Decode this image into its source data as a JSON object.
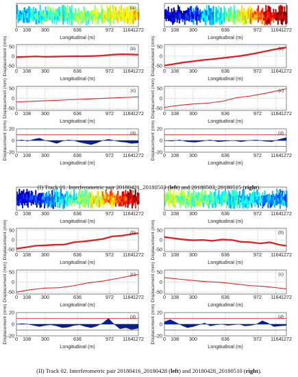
{
  "captions": {
    "track1": {
      "pre": "(I) Track 01. Interferometric pair 20180421_20180503 (",
      "b1": "left",
      "mid": ") and 20180503_20180515 (",
      "b2": "right",
      "post": ")."
    },
    "track2": {
      "pre": "(II) Track 02. Interferometric pair 20180416_20180428 (",
      "b1": "left",
      "mid": ") and 20180428_20180510 (",
      "b2": "right",
      "post": ")."
    }
  },
  "chart_data": [
    {
      "type": "heatmap",
      "block": "I",
      "side": "left",
      "panel": "(a)",
      "xlabel": "Longitudinal (m)",
      "xticks": [
        0,
        108,
        300,
        636,
        972,
        1164,
        1272
      ],
      "xlim": [
        0,
        1272
      ],
      "color_trend": [
        0.32,
        0.4,
        0.44,
        0.42,
        0.46,
        0.5,
        0.54,
        0.58,
        0.6,
        0.66
      ]
    },
    {
      "type": "line",
      "block": "I",
      "side": "left",
      "panel": "(b)",
      "xlabel": "Longitudinal (m)",
      "ylabel": "Displacement (mm)",
      "xticks": [
        0,
        108,
        300,
        636,
        972,
        1164,
        1272
      ],
      "yticks": [
        -50,
        0,
        50
      ],
      "ylim": [
        -60,
        60
      ],
      "x": [
        0,
        100,
        200,
        300,
        400,
        500,
        600,
        700,
        800,
        900,
        1000,
        1100,
        1200,
        1272
      ],
      "y": [
        -5,
        -3,
        -1,
        -3,
        -2,
        -1,
        0,
        0,
        1,
        3,
        8,
        10,
        9,
        8
      ]
    },
    {
      "type": "line",
      "block": "I",
      "side": "left",
      "panel": "(c)",
      "xlabel": "Longitudinal (m)",
      "ylabel": "Displacement (mm)",
      "xticks": [
        0,
        108,
        300,
        636,
        972,
        1164,
        1272
      ],
      "yticks": [
        -50,
        0,
        50
      ],
      "ylim": [
        -60,
        60
      ],
      "x": [
        0,
        200,
        400,
        600,
        800,
        1000,
        1200,
        1272
      ],
      "y": [
        -18,
        -14,
        -10,
        -6,
        -2,
        2,
        6,
        8
      ]
    },
    {
      "type": "area",
      "block": "I",
      "side": "left",
      "panel": "(d)",
      "xlabel": "Longitudinal (m)",
      "ylabel": "Displacement (mm)",
      "xticks": [
        0,
        108,
        300,
        636,
        972,
        1164,
        1272
      ],
      "yticks": [
        -20,
        0,
        20
      ],
      "ylim": [
        -20,
        20
      ],
      "thresholds": [
        -10,
        10
      ],
      "x": [
        0,
        60,
        120,
        180,
        240,
        300,
        360,
        420,
        480,
        540,
        600,
        660,
        720,
        780,
        840,
        900,
        960,
        1020,
        1080,
        1140,
        1200,
        1272
      ],
      "y": [
        0,
        1,
        -1,
        2,
        4,
        0,
        -2,
        -5,
        -1,
        1,
        0,
        -3,
        -5,
        -7,
        -4,
        0,
        2,
        0,
        -2,
        -3,
        -5,
        -4
      ]
    },
    {
      "type": "heatmap",
      "block": "I",
      "side": "right",
      "panel": "(a)",
      "xlabel": "Longitudinal (m)",
      "xticks": [
        0,
        108,
        300,
        636,
        972,
        1164,
        1272
      ],
      "xlim": [
        0,
        1272
      ],
      "color_trend": [
        0.08,
        0.12,
        0.2,
        0.3,
        0.4,
        0.5,
        0.62,
        0.76,
        0.88,
        0.95
      ]
    },
    {
      "type": "line",
      "block": "I",
      "side": "right",
      "panel": "(b)",
      "xlabel": "Longitudinal (m)",
      "ylabel": "Displacement (mm)",
      "xticks": [
        0,
        108,
        300,
        636,
        972,
        1164,
        1272
      ],
      "yticks": [
        -50,
        0,
        50
      ],
      "ylim": [
        -60,
        60
      ],
      "x": [
        0,
        100,
        200,
        300,
        400,
        500,
        600,
        700,
        800,
        900,
        1000,
        1100,
        1200,
        1272
      ],
      "y": [
        -48,
        -40,
        -32,
        -26,
        -20,
        -15,
        -10,
        -4,
        2,
        10,
        20,
        30,
        40,
        45
      ]
    },
    {
      "type": "line",
      "block": "I",
      "side": "right",
      "panel": "(c)",
      "xlabel": "Longitudinal (m)",
      "ylabel": "Displacement (mm)",
      "xticks": [
        0,
        108,
        300,
        636,
        972,
        1164,
        1272
      ],
      "yticks": [
        -50,
        0,
        50
      ],
      "ylim": [
        -60,
        60
      ],
      "x": [
        0,
        150,
        300,
        450,
        600,
        750,
        900,
        1050,
        1200,
        1272
      ],
      "y": [
        -45,
        -35,
        -28,
        -24,
        -15,
        3,
        12,
        25,
        40,
        48
      ]
    },
    {
      "type": "area",
      "block": "I",
      "side": "right",
      "panel": "(d)",
      "xlabel": "Longitudinal (m)",
      "ylabel": "Displacement (mm)",
      "xticks": [
        0,
        108,
        300,
        636,
        972,
        1164,
        1272
      ],
      "yticks": [
        -20,
        0,
        20
      ],
      "ylim": [
        -20,
        20
      ],
      "thresholds": [
        -10,
        10
      ],
      "x": [
        0,
        80,
        160,
        240,
        320,
        400,
        480,
        560,
        640,
        720,
        800,
        880,
        960,
        1040,
        1120,
        1200,
        1272
      ],
      "y": [
        0,
        -1,
        1,
        -2,
        -3,
        -1,
        1,
        -2,
        -1,
        0,
        -2,
        0,
        1,
        -1,
        -2,
        2,
        5
      ]
    },
    {
      "type": "heatmap",
      "block": "II",
      "side": "left",
      "panel": "(a)",
      "xlabel": "Longitudinal (m)",
      "xticks": [
        0,
        108,
        300,
        636,
        972,
        1164,
        1272
      ],
      "xlim": [
        0,
        1272
      ],
      "color_trend": [
        0.1,
        0.14,
        0.22,
        0.32,
        0.42,
        0.52,
        0.62,
        0.72,
        0.82,
        0.9
      ]
    },
    {
      "type": "line",
      "block": "II",
      "side": "left",
      "panel": "(b)",
      "xlabel": "Longitudinal (m)",
      "ylabel": "Displacement (mm)",
      "xticks": [
        0,
        108,
        300,
        636,
        972,
        1164,
        1272
      ],
      "yticks": [
        -50,
        0,
        50
      ],
      "ylim": [
        -60,
        60
      ],
      "x": [
        0,
        100,
        200,
        300,
        400,
        500,
        600,
        700,
        800,
        900,
        1000,
        1100,
        1200,
        1272
      ],
      "y": [
        -45,
        -38,
        -30,
        -28,
        -25,
        -24,
        -12,
        -8,
        -2,
        5,
        18,
        22,
        30,
        35
      ]
    },
    {
      "type": "line",
      "block": "II",
      "side": "left",
      "panel": "(c)",
      "xlabel": "Longitudinal (m)",
      "ylabel": "Displacement (mm)",
      "xticks": [
        0,
        108,
        300,
        636,
        972,
        1164,
        1272
      ],
      "yticks": [
        -50,
        0,
        50
      ],
      "ylim": [
        -60,
        60
      ],
      "x": [
        0,
        150,
        300,
        450,
        600,
        750,
        900,
        1050,
        1200,
        1272
      ],
      "y": [
        -50,
        -38,
        -30,
        -28,
        -18,
        -4,
        5,
        18,
        32,
        38
      ]
    },
    {
      "type": "area",
      "block": "II",
      "side": "left",
      "panel": "(d)",
      "xlabel": "Longitudinal (m)",
      "ylabel": "Displacement (mm)",
      "xticks": [
        0,
        108,
        300,
        636,
        972,
        1164,
        1272
      ],
      "yticks": [
        -20,
        0,
        20
      ],
      "ylim": [
        -20,
        20
      ],
      "thresholds": [
        -10,
        10
      ],
      "x": [
        0,
        60,
        120,
        180,
        240,
        300,
        360,
        420,
        480,
        540,
        600,
        660,
        720,
        780,
        840,
        900,
        960,
        1020,
        1080,
        1140,
        1200,
        1272
      ],
      "y": [
        0,
        1,
        0,
        -2,
        -4,
        -2,
        -1,
        -3,
        -6,
        -5,
        -2,
        -1,
        -4,
        -6,
        -3,
        2,
        10,
        0,
        -8,
        -6,
        -9,
        -7
      ]
    },
    {
      "type": "heatmap",
      "block": "II",
      "side": "right",
      "panel": "(a)",
      "xlabel": "Longitudinal (m)",
      "xticks": [
        0,
        108,
        300,
        636,
        972,
        1164,
        1272
      ],
      "xlim": [
        0,
        1272
      ],
      "color_trend": [
        0.55,
        0.5,
        0.48,
        0.45,
        0.4,
        0.38,
        0.36,
        0.34,
        0.3,
        0.28
      ]
    },
    {
      "type": "line",
      "block": "II",
      "side": "right",
      "panel": "(b)",
      "xlabel": "Longitudinal (m)",
      "ylabel": "Displacement (mm)",
      "xticks": [
        0,
        108,
        300,
        636,
        972,
        1164,
        1272
      ],
      "yticks": [
        -50,
        0,
        50
      ],
      "ylim": [
        -60,
        60
      ],
      "x": [
        0,
        100,
        200,
        300,
        400,
        500,
        600,
        700,
        800,
        900,
        1000,
        1100,
        1200,
        1272
      ],
      "y": [
        15,
        8,
        2,
        -2,
        0,
        -5,
        2,
        0,
        -10,
        -12,
        -18,
        -12,
        -25,
        -30
      ]
    },
    {
      "type": "line",
      "block": "II",
      "side": "right",
      "panel": "(c)",
      "xlabel": "Longitudinal (m)",
      "ylabel": "Displacement (mm)",
      "xticks": [
        0,
        108,
        300,
        636,
        972,
        1164,
        1272
      ],
      "yticks": [
        -50,
        0,
        50
      ],
      "ylim": [
        -60,
        60
      ],
      "x": [
        0,
        150,
        300,
        450,
        600,
        750,
        900,
        1050,
        1200,
        1272
      ],
      "y": [
        22,
        15,
        8,
        2,
        -2,
        -10,
        -18,
        -22,
        -30,
        -34
      ]
    },
    {
      "type": "area",
      "block": "II",
      "side": "right",
      "panel": "(d)",
      "xlabel": "Longitudinal (m)",
      "ylabel": "Displacement (mm)",
      "xticks": [
        0,
        108,
        300,
        636,
        972,
        1164,
        1272
      ],
      "yticks": [
        -20,
        0,
        20
      ],
      "ylim": [
        -20,
        20
      ],
      "thresholds": [
        -10,
        10
      ],
      "x": [
        0,
        60,
        120,
        180,
        240,
        300,
        360,
        420,
        480,
        540,
        600,
        660,
        720,
        780,
        840,
        900,
        960,
        1020,
        1080,
        1140,
        1200,
        1272
      ],
      "y": [
        4,
        8,
        3,
        -2,
        -6,
        -4,
        -1,
        2,
        -3,
        -1,
        0,
        -2,
        -1,
        0,
        -3,
        -2,
        0,
        6,
        2,
        -4,
        -3,
        -2
      ]
    }
  ]
}
